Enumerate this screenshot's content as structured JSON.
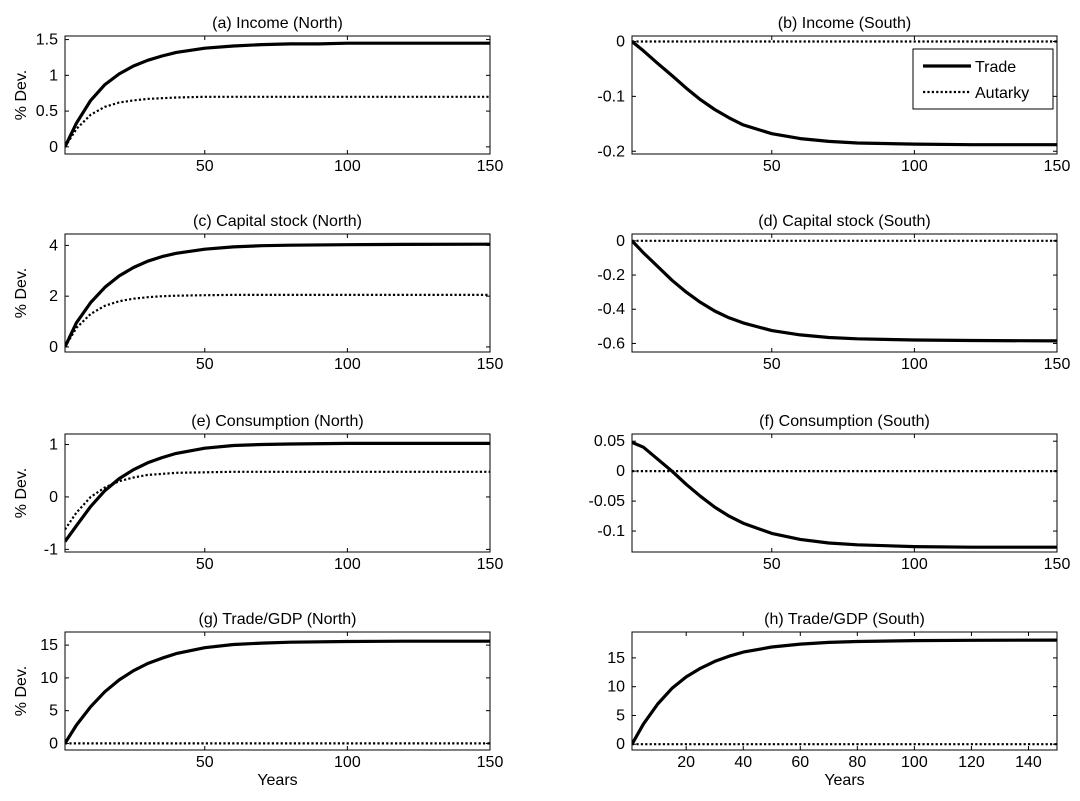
{
  "chart_data": [
    {
      "type": "line",
      "title": "(a) Income (North)",
      "ylabel": "% Dev.",
      "xlabel": "",
      "xlim": [
        1,
        150
      ],
      "ylim": [
        -0.1,
        1.55
      ],
      "xticks": [
        50,
        100,
        150
      ],
      "yticks": [
        0,
        0.5,
        1,
        1.5
      ],
      "yticklabels": [
        "0",
        "0.5",
        "1",
        "1.5"
      ],
      "series": [
        {
          "style": "solid",
          "x": [
            1,
            5,
            10,
            15,
            20,
            25,
            30,
            35,
            40,
            50,
            60,
            70,
            80,
            90,
            100,
            120,
            150
          ],
          "y": [
            0,
            0.33,
            0.65,
            0.87,
            1.02,
            1.13,
            1.21,
            1.27,
            1.32,
            1.38,
            1.41,
            1.43,
            1.44,
            1.44,
            1.45,
            1.45,
            1.45
          ]
        },
        {
          "style": "dotted",
          "x": [
            1,
            5,
            10,
            15,
            20,
            25,
            30,
            35,
            40,
            50,
            60,
            70,
            80,
            100,
            150
          ],
          "y": [
            0,
            0.25,
            0.45,
            0.56,
            0.62,
            0.65,
            0.67,
            0.68,
            0.69,
            0.7,
            0.7,
            0.7,
            0.7,
            0.7,
            0.7
          ]
        }
      ]
    },
    {
      "type": "line",
      "title": "(b) Income (South)",
      "ylabel": "",
      "xlabel": "",
      "xlim": [
        1,
        150
      ],
      "ylim": [
        -0.205,
        0.01
      ],
      "xticks": [
        50,
        100,
        150
      ],
      "yticks": [
        0,
        -0.1,
        -0.2
      ],
      "yticklabels": [
        "0",
        "-0.1",
        "-0.2"
      ],
      "legend": {
        "position": "top-right",
        "entries": [
          "Trade",
          "Autarky"
        ]
      },
      "series": [
        {
          "name": "Trade",
          "style": "solid",
          "x": [
            1,
            5,
            10,
            15,
            20,
            25,
            30,
            35,
            40,
            50,
            60,
            70,
            80,
            100,
            120,
            150
          ],
          "y": [
            0,
            -0.017,
            -0.04,
            -0.062,
            -0.085,
            -0.106,
            -0.124,
            -0.139,
            -0.152,
            -0.168,
            -0.177,
            -0.182,
            -0.185,
            -0.187,
            -0.188,
            -0.188
          ]
        },
        {
          "name": "Autarky",
          "style": "dotted",
          "x": [
            1,
            150
          ],
          "y": [
            0,
            0
          ]
        }
      ]
    },
    {
      "type": "line",
      "title": "(c) Capital stock (North)",
      "ylabel": "% Dev.",
      "xlabel": "",
      "xlim": [
        1,
        150
      ],
      "ylim": [
        -0.2,
        4.45
      ],
      "xticks": [
        50,
        100,
        150
      ],
      "yticks": [
        0,
        2,
        4
      ],
      "yticklabels": [
        "0",
        "2",
        "4"
      ],
      "series": [
        {
          "style": "solid",
          "x": [
            1,
            5,
            10,
            15,
            20,
            25,
            30,
            35,
            40,
            50,
            60,
            70,
            80,
            100,
            120,
            150
          ],
          "y": [
            0,
            0.95,
            1.75,
            2.35,
            2.8,
            3.13,
            3.38,
            3.56,
            3.69,
            3.85,
            3.94,
            3.99,
            4.01,
            4.03,
            4.04,
            4.05
          ]
        },
        {
          "style": "dotted",
          "x": [
            1,
            5,
            10,
            15,
            20,
            25,
            30,
            35,
            40,
            50,
            60,
            70,
            100,
            150
          ],
          "y": [
            0,
            0.75,
            1.3,
            1.62,
            1.8,
            1.9,
            1.96,
            2.0,
            2.02,
            2.04,
            2.05,
            2.05,
            2.05,
            2.05
          ]
        }
      ]
    },
    {
      "type": "line",
      "title": "(d) Capital stock (South)",
      "ylabel": "",
      "xlabel": "",
      "xlim": [
        1,
        150
      ],
      "ylim": [
        -0.65,
        0.04
      ],
      "xticks": [
        50,
        100,
        150
      ],
      "yticks": [
        0,
        -0.2,
        -0.4,
        -0.6
      ],
      "yticklabels": [
        "0",
        "-0.2",
        "-0.4",
        "-0.6"
      ],
      "series": [
        {
          "style": "solid",
          "x": [
            1,
            5,
            10,
            15,
            20,
            25,
            30,
            35,
            40,
            50,
            60,
            70,
            80,
            100,
            120,
            150
          ],
          "y": [
            0,
            -0.07,
            -0.15,
            -0.23,
            -0.3,
            -0.36,
            -0.41,
            -0.45,
            -0.48,
            -0.525,
            -0.55,
            -0.565,
            -0.573,
            -0.58,
            -0.583,
            -0.585
          ]
        },
        {
          "style": "dotted",
          "x": [
            1,
            150
          ],
          "y": [
            0,
            0
          ]
        }
      ]
    },
    {
      "type": "line",
      "title": "(e) Consumption (North)",
      "ylabel": "% Dev.",
      "xlabel": "",
      "xlim": [
        1,
        150
      ],
      "ylim": [
        -1.05,
        1.2
      ],
      "xticks": [
        50,
        100,
        150
      ],
      "yticks": [
        -1,
        0,
        1
      ],
      "yticklabels": [
        "-1",
        "0",
        "1"
      ],
      "series": [
        {
          "style": "solid",
          "x": [
            1,
            5,
            10,
            15,
            20,
            25,
            30,
            35,
            40,
            50,
            60,
            70,
            80,
            100,
            120,
            150
          ],
          "y": [
            -0.85,
            -0.55,
            -0.18,
            0.12,
            0.35,
            0.52,
            0.65,
            0.75,
            0.83,
            0.93,
            0.98,
            1.0,
            1.01,
            1.02,
            1.02,
            1.02
          ]
        },
        {
          "style": "dotted",
          "x": [
            1,
            5,
            10,
            15,
            20,
            25,
            30,
            35,
            40,
            50,
            60,
            70,
            100,
            150
          ],
          "y": [
            -0.62,
            -0.3,
            0.0,
            0.18,
            0.3,
            0.37,
            0.42,
            0.44,
            0.46,
            0.47,
            0.48,
            0.48,
            0.48,
            0.48
          ]
        }
      ]
    },
    {
      "type": "line",
      "title": "(f) Consumption (South)",
      "ylabel": "",
      "xlabel": "",
      "xlim": [
        1,
        150
      ],
      "ylim": [
        -0.135,
        0.062
      ],
      "xticks": [
        50,
        100,
        150
      ],
      "yticks": [
        0.05,
        0,
        -0.05,
        -0.1
      ],
      "yticklabels": [
        "0.05",
        "0",
        "-0.05",
        "-0.1"
      ],
      "series": [
        {
          "style": "solid",
          "x": [
            1,
            5,
            10,
            15,
            20,
            25,
            30,
            35,
            40,
            50,
            60,
            70,
            80,
            100,
            120,
            150
          ],
          "y": [
            0.048,
            0.04,
            0.02,
            0.0,
            -0.022,
            -0.042,
            -0.06,
            -0.075,
            -0.087,
            -0.104,
            -0.114,
            -0.12,
            -0.123,
            -0.126,
            -0.127,
            -0.127
          ]
        },
        {
          "style": "dotted",
          "x": [
            1,
            150
          ],
          "y": [
            0,
            0
          ]
        }
      ]
    },
    {
      "type": "line",
      "title": "(g) Trade/GDP (North)",
      "ylabel": "% Dev.",
      "xlabel": "Years",
      "xlim": [
        1,
        150
      ],
      "ylim": [
        -1,
        17
      ],
      "xticks": [
        50,
        100,
        150
      ],
      "yticks": [
        0,
        5,
        10,
        15
      ],
      "yticklabels": [
        "0",
        "5",
        "10",
        "15"
      ],
      "series": [
        {
          "style": "solid",
          "x": [
            1,
            5,
            10,
            15,
            20,
            25,
            30,
            35,
            40,
            50,
            60,
            70,
            80,
            100,
            120,
            150
          ],
          "y": [
            0,
            2.8,
            5.6,
            7.9,
            9.7,
            11.1,
            12.2,
            13.0,
            13.7,
            14.6,
            15.1,
            15.3,
            15.45,
            15.55,
            15.6,
            15.6
          ]
        },
        {
          "style": "dotted",
          "x": [
            1,
            150
          ],
          "y": [
            0,
            0
          ]
        }
      ]
    },
    {
      "type": "line",
      "title": "(h) Trade/GDP (South)",
      "ylabel": "",
      "xlabel": "Years",
      "xlim": [
        1,
        150
      ],
      "ylim": [
        -1,
        19.5
      ],
      "xticks": [
        20,
        40,
        60,
        80,
        100,
        120,
        140
      ],
      "yticks": [
        0,
        5,
        10,
        15
      ],
      "yticklabels": [
        "0",
        "5",
        "10",
        "15"
      ],
      "series": [
        {
          "style": "solid",
          "x": [
            1,
            5,
            10,
            15,
            20,
            25,
            30,
            35,
            40,
            50,
            60,
            70,
            80,
            100,
            120,
            150
          ],
          "y": [
            0,
            3.5,
            7.0,
            9.7,
            11.7,
            13.2,
            14.4,
            15.3,
            16.0,
            16.9,
            17.4,
            17.7,
            17.85,
            18.0,
            18.05,
            18.1
          ]
        },
        {
          "style": "dotted",
          "x": [
            1,
            150
          ],
          "y": [
            0,
            0
          ]
        }
      ]
    }
  ]
}
